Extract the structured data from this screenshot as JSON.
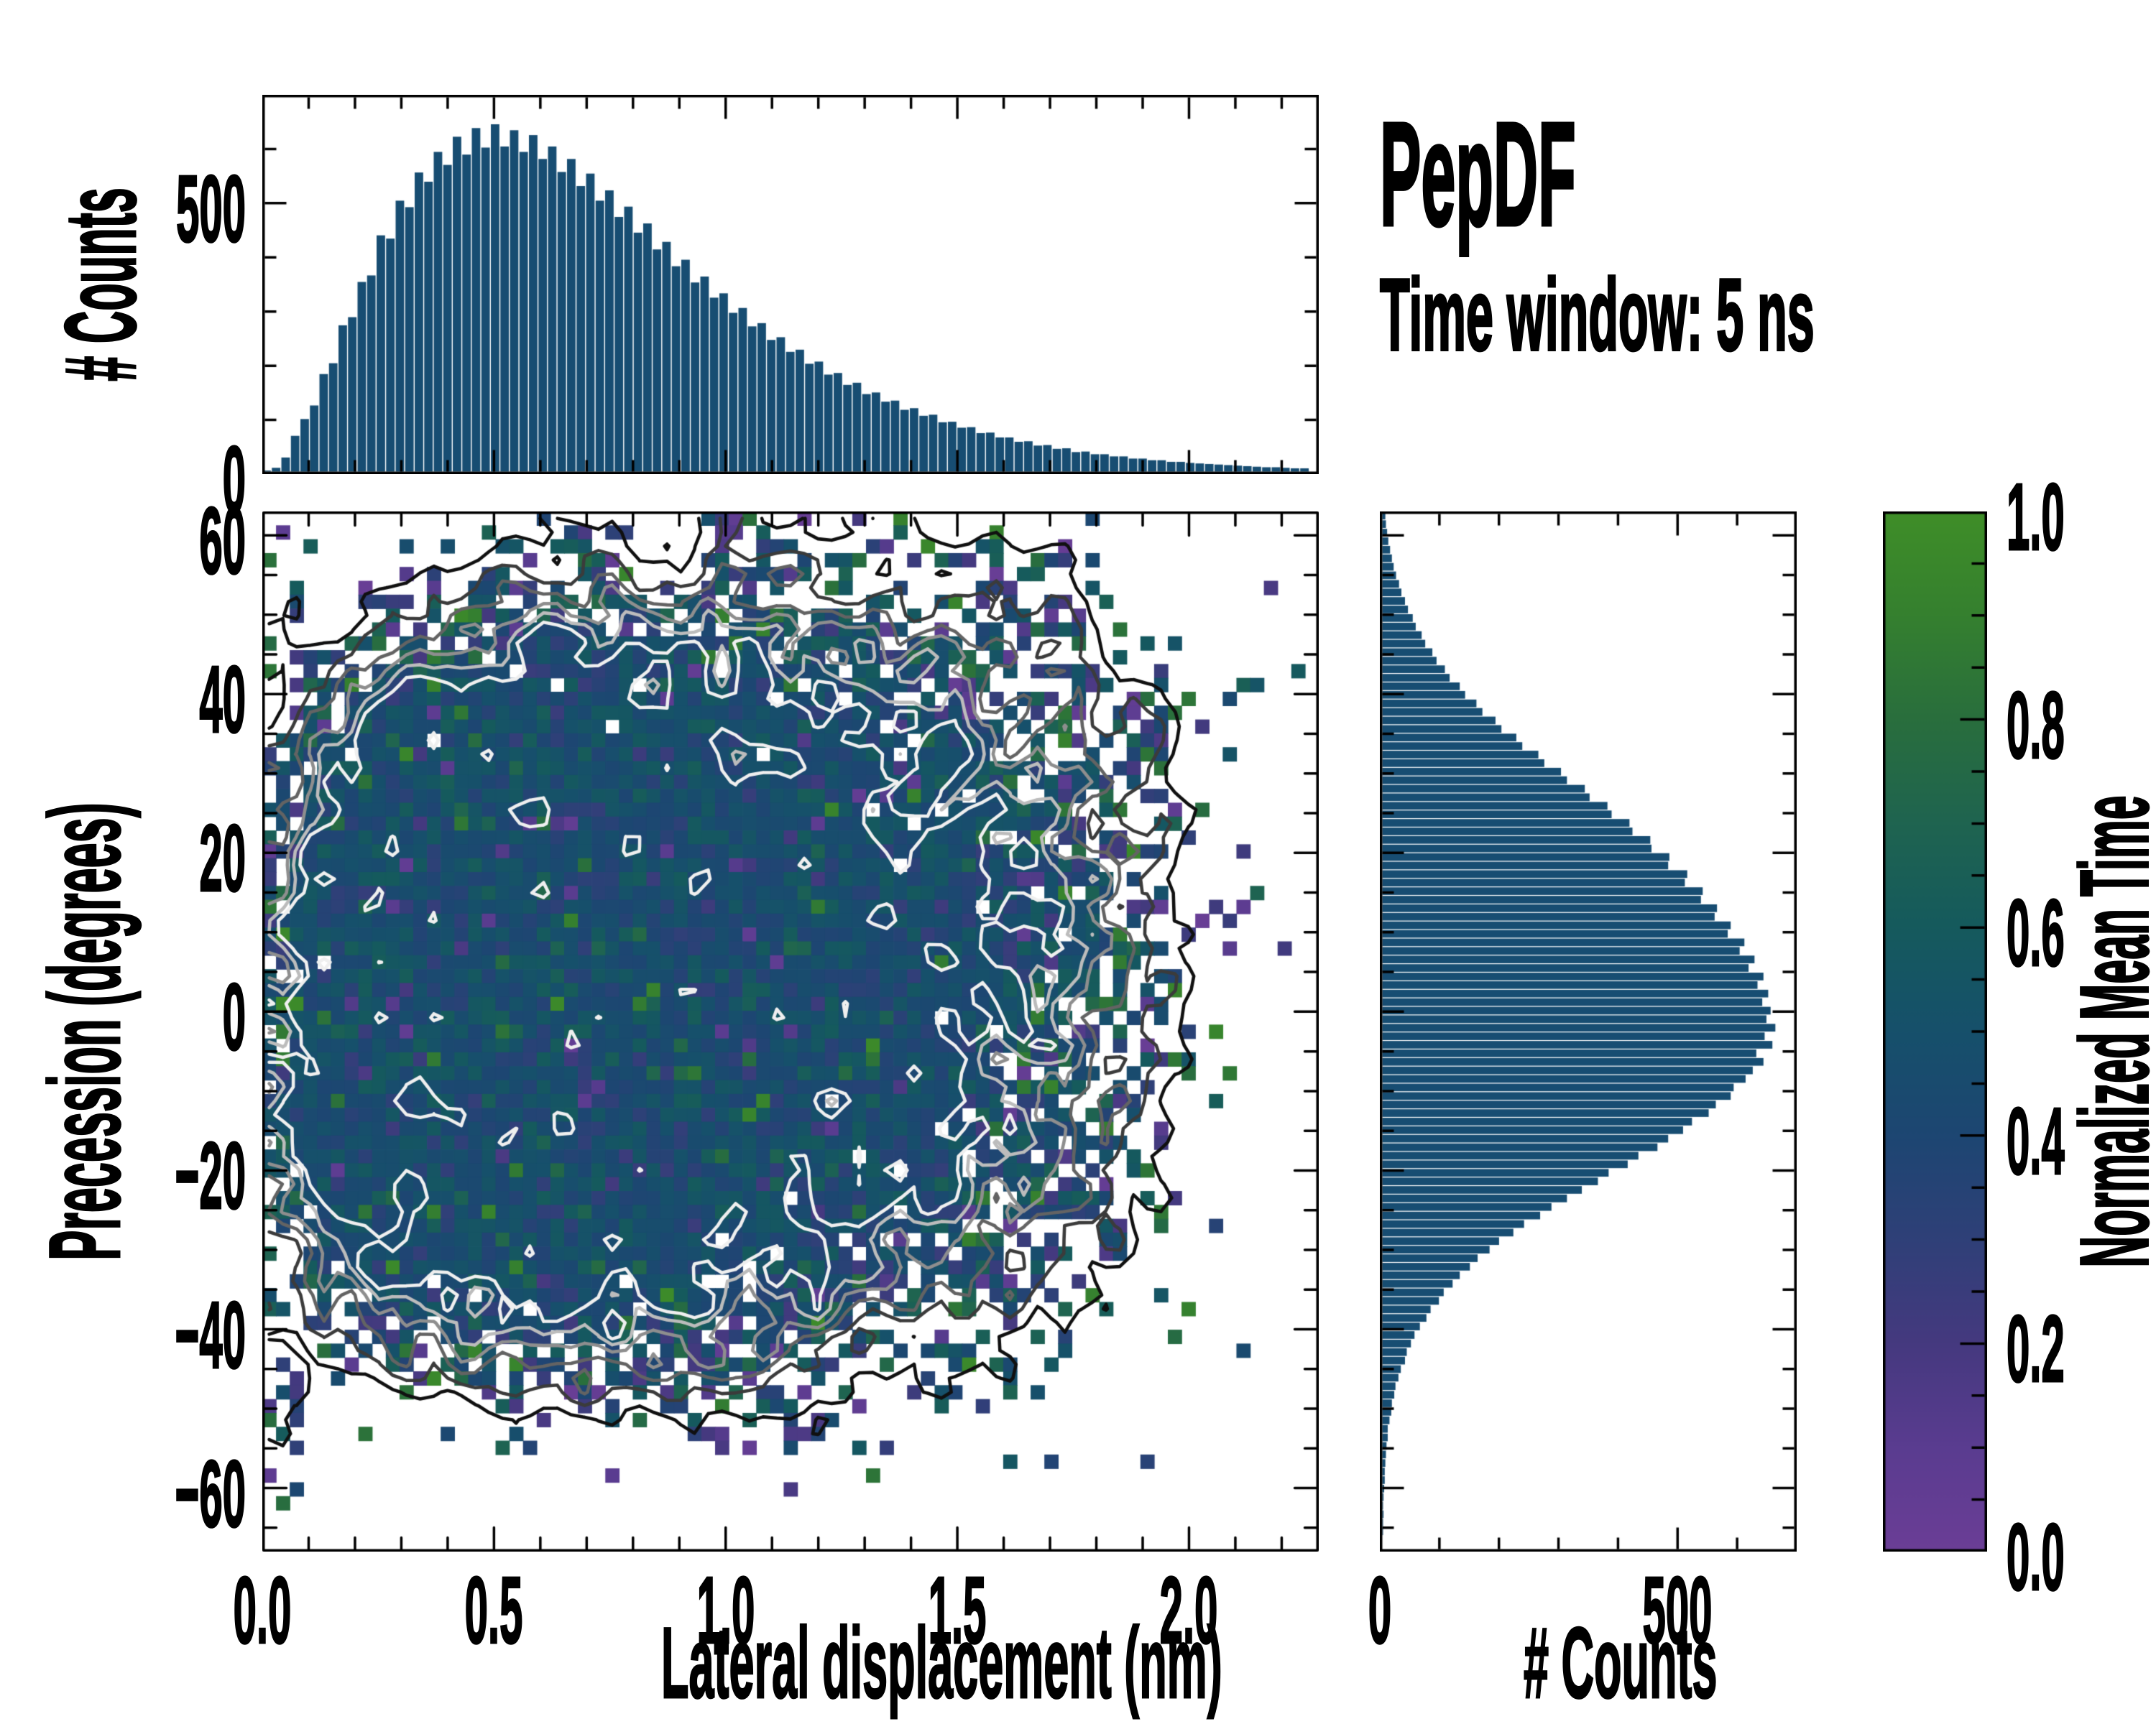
{
  "title": "PepDF",
  "subtitle": "Time window: 5 ns",
  "axes": {
    "top_ylabel": "# Counts",
    "main_xlabel": "Lateral displacement (nm)",
    "main_ylabel": "Precession (degrees)",
    "right_xlabel": "# Counts",
    "colorbar_label": "Normalized Mean Time"
  },
  "colors": {
    "background": "#ffffff",
    "histogram_bar": "#174d72",
    "spine": "#000000",
    "text": "#000000",
    "colormap_stops": [
      [
        0.0,
        "#6b3e96"
      ],
      [
        0.1,
        "#5a3c90"
      ],
      [
        0.2,
        "#45397f"
      ],
      [
        0.3,
        "#2f4078"
      ],
      [
        0.4,
        "#1d4672"
      ],
      [
        0.5,
        "#16506b"
      ],
      [
        0.6,
        "#155a5d"
      ],
      [
        0.7,
        "#1f6450"
      ],
      [
        0.8,
        "#296e3d"
      ],
      [
        0.9,
        "#35802f"
      ],
      [
        1.0,
        "#3f8e28"
      ]
    ],
    "contour_line_colors": [
      "#101010",
      "#3b3b3b",
      "#636363",
      "#8e8e8e",
      "#bcbcbc",
      "#efefef"
    ]
  },
  "chart_data": [
    {
      "id": "top_histogram",
      "type": "bar",
      "ylabel": "# Counts",
      "xlim": [
        0,
        2.28
      ],
      "ylim": [
        0,
        700
      ],
      "y_ticks_major": [
        {
          "value": 0,
          "label": "0"
        },
        {
          "value": 500,
          "label": "500"
        }
      ],
      "y_ticks_minor": [
        100,
        200,
        300,
        400,
        600
      ],
      "bin_start": 0.0103,
      "bin_step": 0.02055,
      "values": [
        2,
        7,
        26,
        66,
        97,
        122,
        180,
        200,
        270,
        285,
        350,
        362,
        436,
        430,
        500,
        488,
        552,
        535,
        590,
        566,
        618,
        585,
        634,
        598,
        641,
        600,
        630,
        590,
        621,
        577,
        600,
        553,
        577,
        527,
        550,
        500,
        519,
        470,
        489,
        441,
        458,
        410,
        424,
        379,
        391,
        349,
        360,
        321,
        329,
        293,
        302,
        268,
        274,
        243,
        248,
        221,
        225,
        199,
        203,
        179,
        182,
        160,
        164,
        143,
        146,
        129,
        131,
        114,
        117,
        103,
        105,
        91,
        92,
        81,
        82,
        71,
        72,
        63,
        63,
        55,
        56,
        48,
        49,
        42,
        43,
        36,
        37,
        32,
        32,
        28,
        28,
        24,
        24,
        21,
        21,
        18,
        18,
        16,
        15,
        14,
        13,
        12,
        11,
        10,
        9,
        8,
        8,
        7,
        6,
        6
      ]
    },
    {
      "id": "main_heatmap",
      "type": "heatmap",
      "xlabel": "Lateral displacement (nm)",
      "ylabel": "Precession (degrees)",
      "color_value_name": "Normalized Mean Time",
      "xlim": [
        0,
        2.28
      ],
      "ylim": [
        -68,
        63
      ],
      "x_ticks_major": [
        {
          "value": 0,
          "label": "0.0"
        },
        {
          "value": 0.5,
          "label": "0.5"
        },
        {
          "value": 1.0,
          "label": "1.0"
        },
        {
          "value": 1.5,
          "label": "1.5"
        },
        {
          "value": 2.0,
          "label": "2.0"
        }
      ],
      "x_ticks_minor": [
        0.1,
        0.2,
        0.3,
        0.4,
        0.6,
        0.7,
        0.8,
        0.9,
        1.1,
        1.2,
        1.3,
        1.4,
        1.6,
        1.7,
        1.8,
        1.9,
        2.1,
        2.2
      ],
      "y_ticks_major": [
        {
          "value": 60,
          "label": "60"
        },
        {
          "value": 40,
          "label": "40"
        },
        {
          "value": 20,
          "label": "20"
        },
        {
          "value": 0,
          "label": "0"
        },
        {
          "value": -20,
          "label": "−20"
        },
        {
          "value": -40,
          "label": "−40"
        },
        {
          "value": -60,
          "label": "−60"
        }
      ],
      "y_ticks_minor": [
        -65,
        -55,
        -50,
        -45,
        -35,
        -30,
        -25,
        -15,
        -10,
        -5,
        5,
        10,
        15,
        25,
        30,
        35,
        45,
        50,
        55
      ],
      "grid": {
        "cols": 77,
        "rows": 75
      },
      "contour_levels": [
        0.12,
        0.26,
        0.42,
        0.58,
        0.73,
        0.86
      ],
      "density_model": {
        "seed": 20,
        "peak_cell_count": 40,
        "mean_y_intercept_deg": -4,
        "mean_y_slope_deg_per_nm": 6,
        "sigma_up_deg": 20,
        "sigma_up_slope": 4,
        "sigma_down_deg": 16,
        "sigma_down_slope": 5,
        "tail_power": 2.3,
        "tail_damp_start_nm": 1.7,
        "tail_damp_scale_nm": 0.3,
        "left_edge_boost_below_nm": 0.1,
        "mean_time_base": 0.46,
        "mean_time_sd": 0.09,
        "edge_extra_sd": 0.2,
        "outlier_base_prob": 0.05,
        "outlier_edge_prob": 0.18
      }
    },
    {
      "id": "right_histogram",
      "type": "bar",
      "orientation": "horizontal",
      "xlabel": "# Counts",
      "xlim": [
        0,
        700
      ],
      "ylim": [
        -68,
        63
      ],
      "x_ticks_major": [
        {
          "value": 0,
          "label": "0"
        },
        {
          "value": 500,
          "label": "500"
        }
      ],
      "x_ticks_minor": [
        100,
        200,
        300,
        400,
        600
      ],
      "bin_start": -65.5,
      "bin_step": 1.075,
      "values": [
        1,
        1,
        2,
        1,
        2,
        3,
        4,
        4,
        5,
        6,
        7,
        9,
        9,
        12,
        15,
        16,
        20,
        22,
        27,
        31,
        38,
        41,
        48,
        54,
        63,
        74,
        81,
        95,
        103,
        118,
        130,
        147,
        160,
        180,
        196,
        220,
        238,
        265,
        284,
        310,
        335,
        362,
        380,
        412,
        430,
        462,
        480,
        505,
        520,
        548,
        560,
        585,
        590,
        610,
        622,
        640,
        628,
        655,
        642,
        660,
        645,
        652,
        638,
        648,
        630,
        640,
        615,
        625,
        600,
        608,
        580,
        585,
        558,
        562,
        535,
        538,
        508,
        512,
        480,
        482,
        452,
        450,
        420,
        415,
        385,
        378,
        348,
        340,
        310,
        300,
        272,
        262,
        235,
        225,
        200,
        190,
        168,
        158,
        139,
        130,
        113,
        105,
        91,
        84,
        72,
        66,
        56,
        51,
        43,
        38,
        32,
        28,
        23,
        19,
        16,
        13,
        10,
        8,
        6,
        5
      ]
    }
  ],
  "colorbar": {
    "label": "Normalized Mean Time",
    "range": [
      0,
      1
    ],
    "ticks_major": [
      {
        "value": 1.0,
        "label": "1.0"
      },
      {
        "value": 0.8,
        "label": "0.8"
      },
      {
        "value": 0.6,
        "label": "0.6"
      },
      {
        "value": 0.4,
        "label": "0.4"
      },
      {
        "value": 0.2,
        "label": "0.2"
      },
      {
        "value": 0.0,
        "label": "0.0"
      }
    ],
    "ticks_minor": [
      0.05,
      0.1,
      0.15,
      0.25,
      0.3,
      0.35,
      0.45,
      0.5,
      0.55,
      0.65,
      0.7,
      0.75,
      0.85,
      0.9,
      0.95
    ]
  }
}
